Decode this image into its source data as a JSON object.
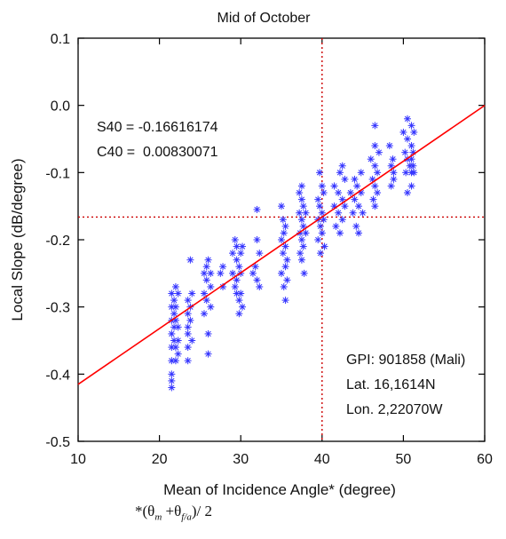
{
  "chart_data": {
    "type": "scatter",
    "title": "Mid of October",
    "xlabel": "Mean of Incidence Angle* (degree)",
    "ylabel": "Local Slope (dB/degree)",
    "xlim": [
      10,
      60
    ],
    "ylim": [
      -0.5,
      0.1
    ],
    "xticks": [
      "10",
      "20",
      "30",
      "40",
      "50",
      "60"
    ],
    "yticks": [
      "-0.5",
      "-0.4",
      "-0.3",
      "-0.2",
      "-0.1",
      "0.0",
      "0.1"
    ],
    "grid": false,
    "marker_color": "#3333ff",
    "fit_line_color": "#ff0000",
    "reference_line_color": "#cc0000",
    "reference_x": 40,
    "reference_y": -0.16616174,
    "fit_line": {
      "slope": 0.00830071,
      "intercept_at_40": -0.16616174,
      "x": [
        10,
        60
      ],
      "y": [
        -0.4152,
        -0.0001
      ]
    },
    "annotations": {
      "s40": "S40 = -0.16616174",
      "c40": "C40 =  0.00830071",
      "gpi": "GPI: 901858 (Mali)",
      "lat": "Lat. 16,1614N",
      "lon": "Lon. 2,22070W"
    },
    "points": [
      [
        21.5,
        -0.28
      ],
      [
        21.5,
        -0.3
      ],
      [
        21.5,
        -0.32
      ],
      [
        21.5,
        -0.34
      ],
      [
        21.5,
        -0.36
      ],
      [
        21.5,
        -0.38
      ],
      [
        21.5,
        -0.4
      ],
      [
        21.5,
        -0.41
      ],
      [
        21.5,
        -0.42
      ],
      [
        21.8,
        -0.29
      ],
      [
        21.8,
        -0.31
      ],
      [
        21.8,
        -0.33
      ],
      [
        21.8,
        -0.35
      ],
      [
        22.0,
        -0.27
      ],
      [
        22.0,
        -0.3
      ],
      [
        22.0,
        -0.32
      ],
      [
        22.0,
        -0.36
      ],
      [
        22.0,
        -0.38
      ],
      [
        22.3,
        -0.28
      ],
      [
        22.3,
        -0.33
      ],
      [
        22.3,
        -0.35
      ],
      [
        22.3,
        -0.37
      ],
      [
        23.5,
        -0.29
      ],
      [
        23.5,
        -0.31
      ],
      [
        23.5,
        -0.33
      ],
      [
        23.5,
        -0.34
      ],
      [
        23.5,
        -0.36
      ],
      [
        23.5,
        -0.38
      ],
      [
        23.8,
        -0.23
      ],
      [
        23.8,
        -0.3
      ],
      [
        23.8,
        -0.32
      ],
      [
        24.0,
        -0.28
      ],
      [
        24.0,
        -0.35
      ],
      [
        25.5,
        -0.25
      ],
      [
        25.5,
        -0.28
      ],
      [
        25.5,
        -0.31
      ],
      [
        25.8,
        -0.24
      ],
      [
        25.8,
        -0.26
      ],
      [
        25.8,
        -0.29
      ],
      [
        26.0,
        -0.23
      ],
      [
        26.0,
        -0.34
      ],
      [
        26.0,
        -0.37
      ],
      [
        26.3,
        -0.25
      ],
      [
        26.3,
        -0.27
      ],
      [
        26.3,
        -0.3
      ],
      [
        27.5,
        -0.25
      ],
      [
        27.8,
        -0.24
      ],
      [
        27.8,
        -0.27
      ],
      [
        29.0,
        -0.22
      ],
      [
        29.0,
        -0.25
      ],
      [
        29.3,
        -0.2
      ],
      [
        29.3,
        -0.27
      ],
      [
        29.5,
        -0.21
      ],
      [
        29.5,
        -0.23
      ],
      [
        29.5,
        -0.26
      ],
      [
        29.5,
        -0.28
      ],
      [
        29.8,
        -0.24
      ],
      [
        29.8,
        -0.29
      ],
      [
        29.8,
        -0.31
      ],
      [
        30.0,
        -0.22
      ],
      [
        30.0,
        -0.25
      ],
      [
        30.0,
        -0.28
      ],
      [
        30.2,
        -0.21
      ],
      [
        30.2,
        -0.3
      ],
      [
        31.5,
        -0.25
      ],
      [
        31.8,
        -0.24
      ],
      [
        32.0,
        -0.155
      ],
      [
        32.0,
        -0.2
      ],
      [
        32.0,
        -0.26
      ],
      [
        32.3,
        -0.22
      ],
      [
        32.3,
        -0.27
      ],
      [
        35.0,
        -0.15
      ],
      [
        35.0,
        -0.2
      ],
      [
        35.0,
        -0.25
      ],
      [
        35.2,
        -0.17
      ],
      [
        35.2,
        -0.22
      ],
      [
        35.3,
        -0.19
      ],
      [
        35.3,
        -0.27
      ],
      [
        35.5,
        -0.18
      ],
      [
        35.5,
        -0.21
      ],
      [
        35.5,
        -0.24
      ],
      [
        35.5,
        -0.29
      ],
      [
        35.7,
        -0.23
      ],
      [
        35.7,
        -0.26
      ],
      [
        37.2,
        -0.13
      ],
      [
        37.2,
        -0.16
      ],
      [
        37.3,
        -0.19
      ],
      [
        37.3,
        -0.22
      ],
      [
        37.5,
        -0.12
      ],
      [
        37.5,
        -0.14
      ],
      [
        37.5,
        -0.17
      ],
      [
        37.5,
        -0.2
      ],
      [
        37.5,
        -0.23
      ],
      [
        37.7,
        -0.15
      ],
      [
        37.7,
        -0.18
      ],
      [
        37.7,
        -0.21
      ],
      [
        37.8,
        -0.25
      ],
      [
        38.0,
        -0.16
      ],
      [
        38.0,
        -0.19
      ],
      [
        39.5,
        -0.14
      ],
      [
        39.5,
        -0.17
      ],
      [
        39.5,
        -0.2
      ],
      [
        39.7,
        -0.1
      ],
      [
        39.7,
        -0.15
      ],
      [
        39.8,
        -0.18
      ],
      [
        39.8,
        -0.22
      ],
      [
        40.0,
        -0.12
      ],
      [
        40.0,
        -0.16
      ],
      [
        40.0,
        -0.19
      ],
      [
        40.2,
        -0.13
      ],
      [
        40.2,
        -0.17
      ],
      [
        40.3,
        -0.21
      ],
      [
        41.5,
        -0.12
      ],
      [
        41.5,
        -0.15
      ],
      [
        41.7,
        -0.18
      ],
      [
        42.0,
        -0.13
      ],
      [
        42.0,
        -0.16
      ],
      [
        42.2,
        -0.1
      ],
      [
        42.2,
        -0.19
      ],
      [
        42.5,
        -0.09
      ],
      [
        42.5,
        -0.14
      ],
      [
        42.5,
        -0.17
      ],
      [
        42.8,
        -0.11
      ],
      [
        42.8,
        -0.15
      ],
      [
        43.5,
        -0.13
      ],
      [
        43.8,
        -0.16
      ],
      [
        44.0,
        -0.11
      ],
      [
        44.0,
        -0.14
      ],
      [
        44.2,
        -0.18
      ],
      [
        44.3,
        -0.12
      ],
      [
        44.5,
        -0.15
      ],
      [
        44.5,
        -0.19
      ],
      [
        44.8,
        -0.1
      ],
      [
        44.8,
        -0.13
      ],
      [
        45.0,
        -0.16
      ],
      [
        46.0,
        -0.08
      ],
      [
        46.2,
        -0.11
      ],
      [
        46.3,
        -0.14
      ],
      [
        46.5,
        -0.03
      ],
      [
        46.5,
        -0.06
      ],
      [
        46.5,
        -0.09
      ],
      [
        46.5,
        -0.12
      ],
      [
        46.5,
        -0.15
      ],
      [
        46.8,
        -0.1
      ],
      [
        46.8,
        -0.13
      ],
      [
        47.0,
        -0.07
      ],
      [
        48.3,
        -0.06
      ],
      [
        48.5,
        -0.09
      ],
      [
        48.5,
        -0.12
      ],
      [
        48.7,
        -0.08
      ],
      [
        48.8,
        -0.1
      ],
      [
        48.8,
        -0.11
      ],
      [
        50.0,
        -0.04
      ],
      [
        50.2,
        -0.07
      ],
      [
        50.3,
        -0.1
      ],
      [
        50.5,
        -0.02
      ],
      [
        50.5,
        -0.05
      ],
      [
        50.5,
        -0.08
      ],
      [
        50.5,
        -0.13
      ],
      [
        50.8,
        -0.09
      ],
      [
        51.0,
        -0.03
      ],
      [
        51.0,
        -0.06
      ],
      [
        51.0,
        -0.08
      ],
      [
        51.0,
        -0.1
      ],
      [
        51.0,
        -0.12
      ],
      [
        51.2,
        -0.07
      ],
      [
        51.2,
        -0.09
      ],
      [
        51.3,
        -0.04
      ],
      [
        51.3,
        -0.1
      ]
    ]
  },
  "footnote": {
    "prefix": "*(θ",
    "sub1": "m",
    "mid": " +θ",
    "sub2": "f/a",
    "suffix": ")/ 2"
  }
}
